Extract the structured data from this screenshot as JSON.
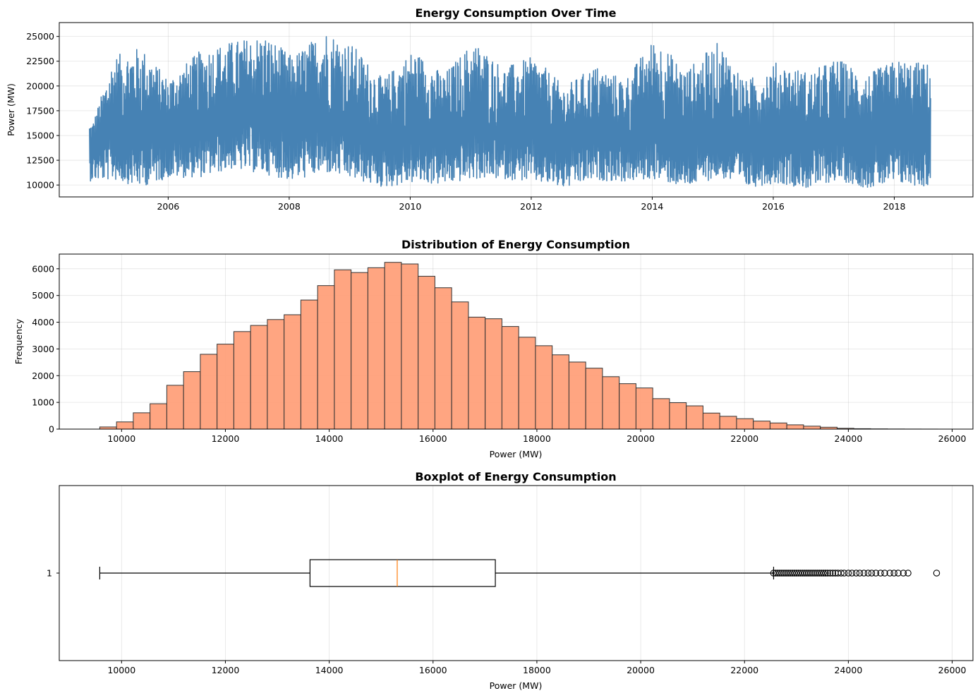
{
  "chart_data": [
    {
      "type": "line",
      "title": "Energy Consumption Over Time",
      "xlabel": "",
      "ylabel": "Power (MW)",
      "xlim": [
        2004.2,
        2019.3
      ],
      "ylim": [
        8800,
        26400
      ],
      "x_ticks": [
        "2006",
        "2008",
        "2010",
        "2012",
        "2014",
        "2016",
        "2018"
      ],
      "x_tick_values": [
        2006,
        2008,
        2010,
        2012,
        2014,
        2016,
        2018
      ],
      "y_ticks": [
        "10000",
        "12500",
        "15000",
        "17500",
        "20000",
        "22500",
        "25000"
      ],
      "y_tick_values": [
        10000,
        12500,
        15000,
        17500,
        20000,
        22500,
        25000
      ],
      "grid": true,
      "color": "#4682b4",
      "series": [
        {
          "x": [
            2004.75,
            2005.1,
            2005.55,
            2006.0,
            2006.55,
            2007.05,
            2007.6,
            2008.05,
            2008.6,
            2009.05,
            2009.55,
            2010.05,
            2010.55,
            2011.05,
            2011.55,
            2012.05,
            2012.55,
            2013.05,
            2013.55,
            2014.05,
            2014.55,
            2015.1,
            2015.55,
            2016.05,
            2016.6,
            2017.05,
            2017.55,
            2018.05,
            2018.55
          ],
          "y_min": [
            10400,
            10500,
            9800,
            10700,
            10800,
            11600,
            11100,
            10400,
            11200,
            10600,
            9700,
            10200,
            10000,
            10600,
            10600,
            10300,
            9600,
            10500,
            10300,
            10600,
            9700,
            10800,
            9700,
            10200,
            9600,
            10500,
            9700,
            10100,
            9800
          ],
          "y_max": [
            16200,
            23000,
            24000,
            20700,
            23700,
            24500,
            25200,
            23000,
            25700,
            24200,
            20700,
            23700,
            21200,
            24600,
            21900,
            23000,
            19900,
            22100,
            20700,
            25000,
            21600,
            24500,
            20500,
            22400,
            21400,
            22800,
            21200,
            22700,
            22300
          ],
          "y_mid": [
            14000,
            15200,
            15000,
            15500,
            15300,
            16500,
            16200,
            15800,
            16200,
            14900,
            14500,
            15300,
            14800,
            15200,
            14800,
            14800,
            14400,
            14800,
            14500,
            14800,
            14300,
            15000,
            14200,
            14600,
            14100,
            14700,
            14100,
            14700,
            14500
          ]
        }
      ]
    },
    {
      "type": "bar",
      "title": "Distribution of Energy Consumption",
      "xlabel": "Power (MW)",
      "ylabel": "Frequency",
      "xlim": [
        8800,
        26400
      ],
      "ylim": [
        0,
        6550
      ],
      "x_ticks": [
        "10000",
        "12000",
        "14000",
        "16000",
        "18000",
        "20000",
        "22000",
        "24000",
        "26000"
      ],
      "x_tick_values": [
        10000,
        12000,
        14000,
        16000,
        18000,
        20000,
        22000,
        24000,
        26000
      ],
      "y_ticks": [
        "0",
        "1000",
        "2000",
        "3000",
        "4000",
        "5000",
        "6000"
      ],
      "y_tick_values": [
        0,
        1000,
        2000,
        3000,
        4000,
        5000,
        6000
      ],
      "grid": true,
      "color": "#ffa07a",
      "bin_start": 9580,
      "bin_width": 322.8,
      "values": [
        80,
        270,
        610,
        950,
        1640,
        2150,
        2800,
        3180,
        3650,
        3880,
        4100,
        4280,
        4830,
        5370,
        5960,
        5860,
        6040,
        6240,
        6180,
        5720,
        5290,
        4760,
        4190,
        4130,
        3840,
        3440,
        3120,
        2780,
        2510,
        2280,
        1960,
        1700,
        1540,
        1140,
        990,
        870,
        600,
        480,
        390,
        300,
        230,
        160,
        110,
        70,
        30,
        15,
        8,
        4,
        2,
        1
      ]
    },
    {
      "type": "boxplot",
      "title": "Boxplot of Energy Consumption",
      "xlabel": "Power (MW)",
      "ylabel": "",
      "xlim": [
        8800,
        26400
      ],
      "x_ticks": [
        "10000",
        "12000",
        "14000",
        "16000",
        "18000",
        "20000",
        "22000",
        "24000",
        "26000"
      ],
      "x_tick_values": [
        10000,
        12000,
        14000,
        16000,
        18000,
        20000,
        22000,
        24000,
        26000
      ],
      "y_ticks": [
        "1"
      ],
      "grid": true,
      "median_color": "#ff7f0e",
      "whisker_low": 9580,
      "q1": 13630,
      "median": 15310,
      "q3": 17200,
      "whisker_high": 22560,
      "outliers": [
        22560,
        22600,
        22640,
        22680,
        22720,
        22760,
        22800,
        22840,
        22880,
        22920,
        22960,
        23000,
        23040,
        23080,
        23120,
        23160,
        23200,
        23240,
        23280,
        23320,
        23360,
        23400,
        23440,
        23480,
        23520,
        23560,
        23600,
        23650,
        23700,
        23750,
        23800,
        23860,
        23920,
        24000,
        24070,
        24150,
        24220,
        24300,
        24380,
        24450,
        24530,
        24620,
        24700,
        24800,
        24880,
        24960,
        25060,
        25150,
        25700
      ]
    }
  ]
}
